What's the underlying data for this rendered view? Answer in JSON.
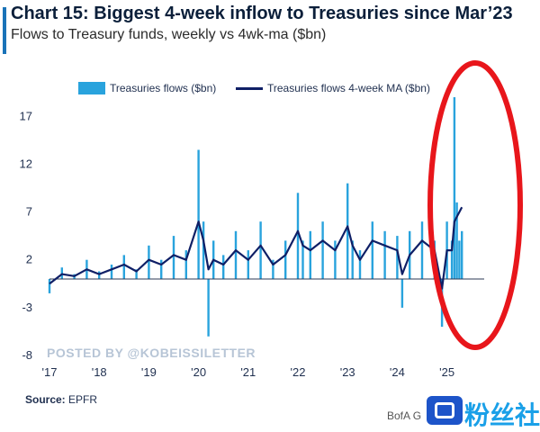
{
  "header": {
    "title": "Chart 15: Biggest 4-week inflow to Treasuries since Mar’23",
    "subtitle": "Flows to Treasury funds, weekly vs 4wk-ma ($bn)"
  },
  "legend": {
    "bars_label": "Treasuries flows ($bn)",
    "line_label": "Treasuries flows 4-week MA ($bn)"
  },
  "watermark": "POSTED BY @KOBEISSILETTER",
  "footer": {
    "source_label": "Source:",
    "source_value": "EPFR",
    "credit": "BofA G",
    "brand": "粉丝社区"
  },
  "colors": {
    "bars": "#29a3dd",
    "line": "#0f1f66",
    "highlight": "#e8161b",
    "title": "#0b1f3a"
  },
  "chart_data": {
    "type": "bar",
    "title": "Chart 15: Biggest 4-week inflow to Treasuries since Mar’23",
    "subtitle": "Flows to Treasury funds, weekly vs 4wk-ma ($bn)",
    "xlabel": "",
    "ylabel": "",
    "x_ticks": [
      "'17",
      "'18",
      "'19",
      "'20",
      "'21",
      "'22",
      "'23",
      "'24",
      "'25"
    ],
    "x_range": [
      2017.0,
      2025.75
    ],
    "y_ticks": [
      17,
      12,
      7,
      2,
      -3,
      -8
    ],
    "ylim": [
      -8,
      19
    ],
    "grid": false,
    "legend_position": "top-right",
    "annotation": "red ellipse highlighting late 2024 to 2025",
    "series": [
      {
        "name": "Treasuries flows ($bn)",
        "kind": "bar",
        "x": [
          2017.0,
          2017.25,
          2017.5,
          2017.75,
          2018.0,
          2018.25,
          2018.5,
          2018.75,
          2019.0,
          2019.25,
          2019.5,
          2019.75,
          2020.0,
          2020.1,
          2020.2,
          2020.3,
          2020.5,
          2020.75,
          2021.0,
          2021.25,
          2021.5,
          2021.75,
          2022.0,
          2022.1,
          2022.25,
          2022.5,
          2022.75,
          2023.0,
          2023.1,
          2023.25,
          2023.5,
          2023.75,
          2024.0,
          2024.1,
          2024.25,
          2024.5,
          2024.75,
          2024.9,
          2025.0,
          2025.1,
          2025.15,
          2025.2,
          2025.25,
          2025.3
        ],
        "values": [
          -1.5,
          1.2,
          0.5,
          2.0,
          0.8,
          1.5,
          2.5,
          1.0,
          3.5,
          2.0,
          4.5,
          3.0,
          13.5,
          6.0,
          -6.0,
          4.0,
          2.5,
          5.0,
          3.0,
          6.0,
          2.0,
          4.0,
          9.0,
          4.0,
          5.0,
          6.0,
          4.0,
          10.0,
          4.0,
          3.0,
          6.0,
          5.0,
          4.5,
          -3.0,
          5.0,
          6.0,
          4.0,
          -5.0,
          6.0,
          4.0,
          19.0,
          8.0,
          4.0,
          5.0
        ]
      },
      {
        "name": "Treasuries flows 4-week MA ($bn)",
        "kind": "line",
        "x": [
          2017.0,
          2017.25,
          2017.5,
          2017.75,
          2018.0,
          2018.25,
          2018.5,
          2018.75,
          2019.0,
          2019.25,
          2019.5,
          2019.75,
          2020.0,
          2020.1,
          2020.2,
          2020.3,
          2020.5,
          2020.75,
          2021.0,
          2021.25,
          2021.5,
          2021.75,
          2022.0,
          2022.1,
          2022.25,
          2022.5,
          2022.75,
          2023.0,
          2023.1,
          2023.25,
          2023.5,
          2023.75,
          2024.0,
          2024.1,
          2024.25,
          2024.5,
          2024.75,
          2024.9,
          2025.0,
          2025.1,
          2025.15,
          2025.2,
          2025.25,
          2025.3
        ],
        "values": [
          -0.5,
          0.5,
          0.3,
          1.0,
          0.5,
          1.0,
          1.5,
          0.8,
          2.0,
          1.5,
          2.5,
          2.0,
          6.0,
          4.0,
          1.0,
          2.0,
          1.5,
          3.0,
          2.0,
          3.5,
          1.5,
          2.5,
          5.0,
          3.5,
          3.0,
          4.0,
          3.0,
          5.5,
          3.5,
          2.0,
          4.0,
          3.5,
          3.0,
          0.5,
          2.5,
          4.0,
          3.0,
          -1.0,
          3.0,
          3.0,
          6.0,
          6.5,
          7.0,
          7.5
        ]
      }
    ]
  }
}
